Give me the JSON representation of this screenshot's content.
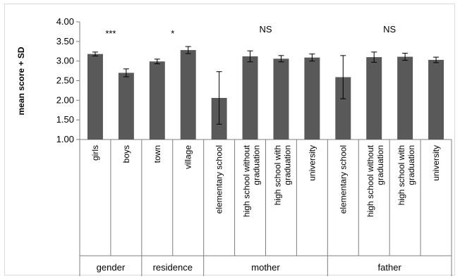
{
  "chart_data": {
    "type": "bar",
    "title": "",
    "ylabel": "mean score + SD",
    "xlabel": "",
    "ylim": [
      1.0,
      4.0
    ],
    "yticks": [
      "1.00",
      "1.50",
      "2.00",
      "2.50",
      "3.00",
      "3.50",
      "4.00"
    ],
    "grid": false,
    "bar_color": "#595959",
    "groups": [
      {
        "name": "gender",
        "significance": "***",
        "categories": [
          "girls",
          "boys"
        ],
        "values": [
          3.18,
          2.7
        ],
        "sd": [
          0.05,
          0.1
        ]
      },
      {
        "name": "residence",
        "significance": "*",
        "categories": [
          "town",
          "village"
        ],
        "values": [
          2.99,
          3.28
        ],
        "sd": [
          0.06,
          0.09
        ]
      },
      {
        "name": "mother",
        "significance": "NS",
        "categories": [
          "elementary school",
          "high school without graduation",
          "high school with graduation",
          "university"
        ],
        "values": [
          2.06,
          3.12,
          3.06,
          3.09
        ],
        "sd": [
          0.67,
          0.14,
          0.08,
          0.09
        ]
      },
      {
        "name": "father",
        "significance": "NS",
        "categories": [
          "elementary school",
          "high school without graduation",
          "high school with graduation",
          "university"
        ],
        "values": [
          2.59,
          3.1,
          3.11,
          3.03
        ],
        "sd": [
          0.55,
          0.13,
          0.09,
          0.07
        ]
      }
    ]
  }
}
